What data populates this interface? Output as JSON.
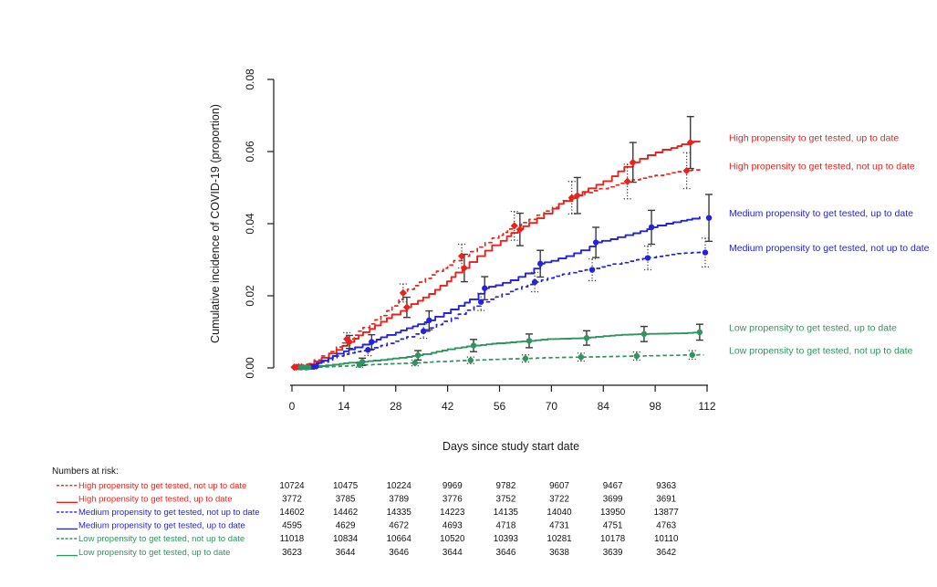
{
  "chart_data": {
    "type": "line",
    "subtype": "cumulative-incidence-step-curves-with-ci",
    "title": "",
    "xlabel": "Days since study start date",
    "ylabel": "Cumulative incidence of COVID-19 (proportion)",
    "xlim": [
      0,
      112
    ],
    "ylim": [
      0,
      0.08
    ],
    "xticks": [
      0,
      14,
      28,
      42,
      56,
      70,
      84,
      98,
      112
    ],
    "ytick_labels": [
      "0.00",
      "0.02",
      "0.04",
      "0.06",
      "0.08"
    ],
    "ytick_values": [
      0,
      0.02,
      0.04,
      0.06,
      0.08
    ],
    "grid": false,
    "legend_position": "right-edge-inline-labels",
    "error_bar_color": "#3a3a3a",
    "series": [
      {
        "id": "high-up-to-date",
        "label": "High propensity to get tested, up to date",
        "color": "#e7231c",
        "style": "solid",
        "marker": "diamond",
        "curve": [
          [
            0,
            0
          ],
          [
            2,
            0.0004
          ],
          [
            4,
            0.001
          ],
          [
            6,
            0.0018
          ],
          [
            8,
            0.0028
          ],
          [
            10,
            0.004
          ],
          [
            12,
            0.005
          ],
          [
            15,
            0.0072
          ],
          [
            18,
            0.009
          ],
          [
            21,
            0.0108
          ],
          [
            24,
            0.0128
          ],
          [
            27,
            0.0148
          ],
          [
            31,
            0.0168
          ],
          [
            34,
            0.0186
          ],
          [
            37,
            0.0205
          ],
          [
            40,
            0.0228
          ],
          [
            43,
            0.0252
          ],
          [
            46,
            0.0277
          ],
          [
            50,
            0.031
          ],
          [
            54,
            0.034
          ],
          [
            58,
            0.0365
          ],
          [
            61,
            0.0384
          ],
          [
            64,
            0.0402
          ],
          [
            68,
            0.0428
          ],
          [
            72,
            0.0455
          ],
          [
            77,
            0.0478
          ],
          [
            80,
            0.0498
          ],
          [
            84,
            0.0518
          ],
          [
            88,
            0.0545
          ],
          [
            92,
            0.057
          ],
          [
            96,
            0.059
          ],
          [
            100,
            0.0605
          ],
          [
            104,
            0.0615
          ],
          [
            107,
            0.0625
          ],
          [
            110,
            0.063
          ]
        ],
        "marker_days": [
          1.2,
          2.6,
          15.5,
          31,
          46.5,
          61.5,
          77,
          92,
          107.5
        ],
        "marker_values": [
          0.0002,
          0.0003,
          0.0072,
          0.0168,
          0.0277,
          0.0384,
          0.0478,
          0.057,
          0.0625
        ],
        "marker_errors": [
          0,
          0,
          0.0018,
          0.0028,
          0.0038,
          0.0045,
          0.005,
          0.0055,
          0.0072
        ]
      },
      {
        "id": "high-not-up-to-date",
        "label": "High propensity to get tested, not up to date",
        "color": "#e7231c",
        "style": "dashed",
        "marker": "diamond",
        "curve": [
          [
            0,
            0
          ],
          [
            2,
            0.0005
          ],
          [
            4,
            0.0012
          ],
          [
            6,
            0.0022
          ],
          [
            8,
            0.0033
          ],
          [
            10,
            0.0045
          ],
          [
            12,
            0.0058
          ],
          [
            15,
            0.008
          ],
          [
            18,
            0.0102
          ],
          [
            21,
            0.0122
          ],
          [
            24,
            0.0145
          ],
          [
            27,
            0.0172
          ],
          [
            30,
            0.0208
          ],
          [
            33,
            0.0228
          ],
          [
            36,
            0.0248
          ],
          [
            39,
            0.0268
          ],
          [
            42,
            0.0285
          ],
          [
            46,
            0.031
          ],
          [
            50,
            0.0335
          ],
          [
            54,
            0.036
          ],
          [
            57,
            0.0376
          ],
          [
            60,
            0.0394
          ],
          [
            64,
            0.0412
          ],
          [
            68,
            0.0435
          ],
          [
            72,
            0.0455
          ],
          [
            75,
            0.0472
          ],
          [
            79,
            0.0486
          ],
          [
            83,
            0.0497
          ],
          [
            87,
            0.0507
          ],
          [
            90,
            0.0517
          ],
          [
            94,
            0.0526
          ],
          [
            98,
            0.0534
          ],
          [
            102,
            0.0541
          ],
          [
            106,
            0.0547
          ],
          [
            110,
            0.0551
          ]
        ],
        "marker_days": [
          0.6,
          1.8,
          14.8,
          30,
          45.8,
          60,
          75.5,
          90.5,
          106.5
        ],
        "marker_values": [
          0.0002,
          0.0003,
          0.008,
          0.0208,
          0.031,
          0.0394,
          0.0472,
          0.0517,
          0.0547
        ],
        "marker_errors": [
          0,
          0,
          0.0018,
          0.0025,
          0.0033,
          0.004,
          0.0045,
          0.0048,
          0.005
        ]
      },
      {
        "id": "medium-up-to-date",
        "label": "Medium propensity to get tested, up to date",
        "color": "#2323dd",
        "style": "solid",
        "marker": "circle",
        "curve": [
          [
            0,
            0
          ],
          [
            3,
            0.0003
          ],
          [
            5,
            0.0007
          ],
          [
            8,
            0.002
          ],
          [
            11,
            0.0033
          ],
          [
            14,
            0.0046
          ],
          [
            17,
            0.0057
          ],
          [
            21,
            0.0072
          ],
          [
            24,
            0.0085
          ],
          [
            28,
            0.0098
          ],
          [
            31,
            0.011
          ],
          [
            34,
            0.0121
          ],
          [
            37,
            0.0132
          ],
          [
            41,
            0.0152
          ],
          [
            45,
            0.0172
          ],
          [
            48,
            0.019
          ],
          [
            52,
            0.0221
          ],
          [
            55,
            0.0229
          ],
          [
            59,
            0.0243
          ],
          [
            63,
            0.0262
          ],
          [
            67,
            0.0289
          ],
          [
            70,
            0.0297
          ],
          [
            74,
            0.031
          ],
          [
            78,
            0.0326
          ],
          [
            82,
            0.0348
          ],
          [
            86,
            0.0357
          ],
          [
            90,
            0.0368
          ],
          [
            94,
            0.0379
          ],
          [
            97,
            0.039
          ],
          [
            101,
            0.04
          ],
          [
            105,
            0.0408
          ],
          [
            108,
            0.0414
          ],
          [
            110,
            0.042
          ]
        ],
        "marker_days": [
          5,
          6.5,
          21.5,
          37,
          52,
          67,
          82,
          97,
          112.5
        ],
        "marker_values": [
          0.0003,
          0.0004,
          0.0072,
          0.0132,
          0.0221,
          0.0289,
          0.0348,
          0.039,
          0.0416
        ],
        "marker_errors": [
          0,
          0,
          0.002,
          0.0026,
          0.0032,
          0.0037,
          0.0042,
          0.0047,
          0.0065
        ]
      },
      {
        "id": "medium-not-up-to-date",
        "label": "Medium propensity to get tested, not up to date",
        "color": "#2323dd",
        "style": "dashed",
        "marker": "circle",
        "curve": [
          [
            0,
            0
          ],
          [
            3,
            0.0003
          ],
          [
            5,
            0.0006
          ],
          [
            8,
            0.0016
          ],
          [
            11,
            0.0028
          ],
          [
            14,
            0.0038
          ],
          [
            17,
            0.0045
          ],
          [
            20,
            0.005
          ],
          [
            24,
            0.0062
          ],
          [
            28,
            0.0074
          ],
          [
            31,
            0.0086
          ],
          [
            35,
            0.0102
          ],
          [
            39,
            0.012
          ],
          [
            43,
            0.0138
          ],
          [
            47,
            0.016
          ],
          [
            51,
            0.0183
          ],
          [
            55,
            0.0197
          ],
          [
            59,
            0.0212
          ],
          [
            62,
            0.0225
          ],
          [
            65,
            0.0238
          ],
          [
            69,
            0.0249
          ],
          [
            73,
            0.026
          ],
          [
            77,
            0.0268
          ],
          [
            81,
            0.0276
          ],
          [
            85,
            0.0284
          ],
          [
            89,
            0.0292
          ],
          [
            93,
            0.03
          ],
          [
            96,
            0.0306
          ],
          [
            100,
            0.0312
          ],
          [
            104,
            0.0317
          ],
          [
            108,
            0.032
          ],
          [
            112,
            0.0323
          ]
        ],
        "marker_days": [
          4.2,
          5.8,
          20.5,
          35.5,
          51,
          65.5,
          81,
          96,
          111.5
        ],
        "marker_values": [
          0.0002,
          0.0003,
          0.005,
          0.0102,
          0.0183,
          0.0238,
          0.0272,
          0.0305,
          0.032
        ],
        "marker_errors": [
          0,
          0,
          0.0016,
          0.002,
          0.0024,
          0.0027,
          0.003,
          0.0033,
          0.004
        ]
      },
      {
        "id": "low-up-to-date",
        "label": "Low propensity to get tested, up to date",
        "color": "#2f9560",
        "style": "solid",
        "marker": "circle",
        "curve": [
          [
            0,
            0
          ],
          [
            3,
            0.0002
          ],
          [
            7,
            0.0005
          ],
          [
            11,
            0.0009
          ],
          [
            14,
            0.0013
          ],
          [
            19,
            0.0017
          ],
          [
            24,
            0.0022
          ],
          [
            29,
            0.0028
          ],
          [
            34,
            0.0035
          ],
          [
            39,
            0.0045
          ],
          [
            44,
            0.0055
          ],
          [
            49,
            0.0062
          ],
          [
            54,
            0.0067
          ],
          [
            59,
            0.0071
          ],
          [
            64,
            0.0075
          ],
          [
            69,
            0.008
          ],
          [
            74,
            0.0081
          ],
          [
            79,
            0.0083
          ],
          [
            84,
            0.0088
          ],
          [
            89,
            0.0092
          ],
          [
            95,
            0.0094
          ],
          [
            100,
            0.0095
          ],
          [
            105,
            0.0096
          ],
          [
            110,
            0.0099
          ]
        ],
        "marker_days": [
          3,
          4.5,
          19,
          34,
          49,
          64,
          79.5,
          95,
          110
        ],
        "marker_values": [
          0.0002,
          0.0002,
          0.0017,
          0.0035,
          0.0062,
          0.0075,
          0.0083,
          0.0094,
          0.0099
        ],
        "marker_errors": [
          0,
          0,
          0.001,
          0.0013,
          0.0017,
          0.0019,
          0.002,
          0.0021,
          0.0022
        ]
      },
      {
        "id": "low-not-up-to-date",
        "label": "Low propensity to get tested, not up to date",
        "color": "#2f9560",
        "style": "dashed",
        "marker": "circle",
        "curve": [
          [
            0,
            0
          ],
          [
            4,
            0.0001
          ],
          [
            9,
            0.0003
          ],
          [
            13,
            0.0005
          ],
          [
            18,
            0.0008
          ],
          [
            23,
            0.001
          ],
          [
            28,
            0.0012
          ],
          [
            33,
            0.0014
          ],
          [
            38,
            0.0017
          ],
          [
            43,
            0.0019
          ],
          [
            48,
            0.0021
          ],
          [
            53,
            0.0023
          ],
          [
            58,
            0.0025
          ],
          [
            63,
            0.0026
          ],
          [
            68,
            0.0028
          ],
          [
            73,
            0.0029
          ],
          [
            78,
            0.003
          ],
          [
            83,
            0.0031
          ],
          [
            88,
            0.0032
          ],
          [
            93,
            0.0033
          ],
          [
            98,
            0.0034
          ],
          [
            103,
            0.0035
          ],
          [
            108,
            0.0036
          ],
          [
            111,
            0.0037
          ]
        ],
        "marker_days": [
          2.4,
          3.8,
          18.2,
          33.2,
          48.2,
          63,
          78,
          93,
          108
        ],
        "marker_values": [
          0.0001,
          0.0001,
          0.0008,
          0.0014,
          0.0021,
          0.0026,
          0.003,
          0.0033,
          0.0036
        ],
        "marker_errors": [
          0,
          0,
          0.0006,
          0.0008,
          0.0009,
          0.001,
          0.0011,
          0.0011,
          0.0012
        ]
      }
    ]
  },
  "risk_table": {
    "title": "Numbers at risk:",
    "days": [
      0,
      14,
      28,
      42,
      56,
      70,
      84,
      98
    ],
    "rows": [
      {
        "label": "High propensity to get tested, not up to date",
        "color": "#e7231c",
        "style": "dashed",
        "values": [
          "10724",
          "10475",
          "10224",
          "9969",
          "9782",
          "9607",
          "9467",
          "9363"
        ]
      },
      {
        "label": "High propensity to get tested, up to date",
        "color": "#e7231c",
        "style": "solid",
        "values": [
          "3772",
          "3785",
          "3789",
          "3776",
          "3752",
          "3722",
          "3699",
          "3691"
        ]
      },
      {
        "label": "Medium propensity to get tested, not up to date",
        "color": "#2323dd",
        "style": "dashed",
        "values": [
          "14602",
          "14462",
          "14335",
          "14223",
          "14135",
          "14040",
          "13950",
          "13877"
        ]
      },
      {
        "label": "Medium propensity to get tested, up to date",
        "color": "#2323dd",
        "style": "solid",
        "values": [
          "4595",
          "4629",
          "4672",
          "4693",
          "4718",
          "4731",
          "4751",
          "4763"
        ]
      },
      {
        "label": "Low propensity to get tested, not up to date",
        "color": "#2f9560",
        "style": "dashed",
        "values": [
          "11018",
          "10834",
          "10664",
          "10520",
          "10393",
          "10281",
          "10178",
          "10110"
        ]
      },
      {
        "label": "Low propensity to get tested, up to date",
        "color": "#2f9560",
        "style": "solid",
        "values": [
          "3623",
          "3644",
          "3646",
          "3644",
          "3646",
          "3638",
          "3639",
          "3642"
        ]
      }
    ]
  }
}
